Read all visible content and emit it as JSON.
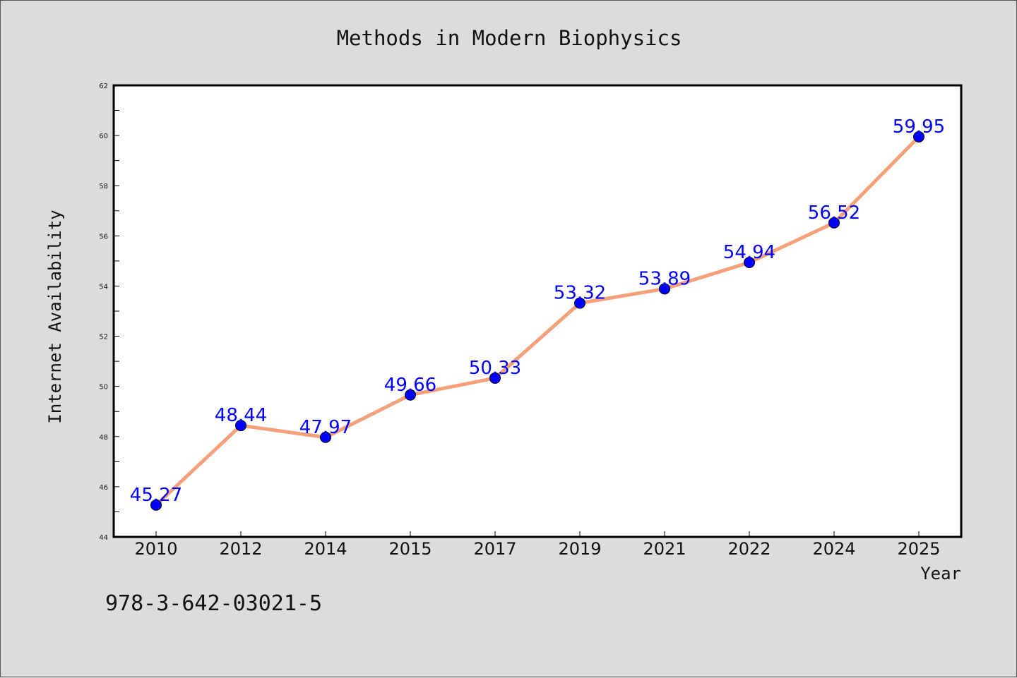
{
  "chart_data": {
    "type": "line",
    "title": "Methods in Modern Biophysics",
    "xlabel": "Year",
    "ylabel": "Internet Availability",
    "categories": [
      "2010",
      "2012",
      "2014",
      "2015",
      "2017",
      "2019",
      "2021",
      "2022",
      "2024",
      "2025"
    ],
    "series": [
      {
        "values": [
          45.27,
          48.44,
          47.97,
          49.66,
          50.33,
          53.32,
          53.89,
          54.94,
          56.52,
          59.95
        ],
        "line_color": "#f4a07a",
        "marker_color": "#0000ff"
      }
    ],
    "data_labels": [
      "45.27",
      "48.44",
      "47.97",
      "49.66",
      "50.33",
      "53.32",
      "53.89",
      "54.94",
      "56.52",
      "59.95"
    ],
    "ylim": [
      44,
      62
    ],
    "yticks": [
      "44",
      "46",
      "48",
      "50",
      "52",
      "54",
      "56",
      "58",
      "60",
      "62"
    ],
    "grid": false,
    "label_color": "#0000ff"
  },
  "footer_text": "978-3-642-03021-5"
}
